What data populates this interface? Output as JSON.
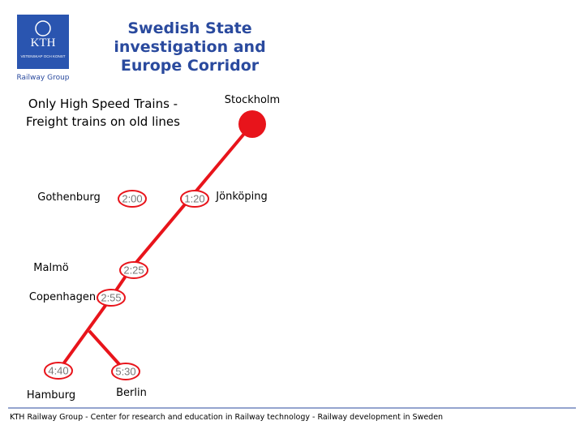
{
  "logo": {
    "name": "KTH",
    "motto": "VETENSKAP OCH KONST",
    "caption": "Railway Group"
  },
  "header": {
    "title": [
      "Swedish State",
      "investigation and",
      "Europe Corridor"
    ]
  },
  "subtitle": [
    "Only High Speed Trains -",
    "Freight trains on old lines"
  ],
  "stations": [
    "Stockholm",
    "Gothenburg",
    "Jönköping",
    "Malmö",
    "Copenhagen",
    "Hamburg",
    "Berlin"
  ],
  "times": [
    "1:20",
    "2:00",
    "2:25",
    "2:55",
    "4:40",
    "5:30"
  ],
  "footer": "KTH Railway Group - Center for research and education in Railway technology - Railway development in Sweden"
}
